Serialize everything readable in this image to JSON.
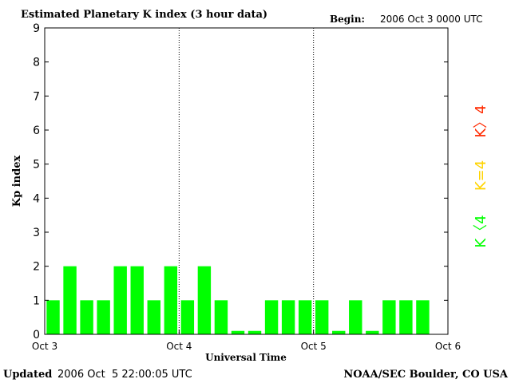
{
  "header": {
    "title": "Estimated Planetary K index (3 hour data)",
    "begin_label": "Begin:",
    "begin_value": "2006 Oct 3 0000 UTC"
  },
  "footer": {
    "updated_label": "Updated",
    "updated_value": "2006 Oct  5 22:00:05 UTC",
    "source": "NOAA/SEC Boulder, CO USA"
  },
  "legend": {
    "high": "K〉4",
    "equal": "K=4",
    "low": "K〈4"
  },
  "colors": {
    "bar_low": "#00ff00",
    "k_equal": "#ffd400",
    "k_high": "#ff2a00",
    "axis": "#000000"
  },
  "chart_data": {
    "type": "bar",
    "title": "Estimated Planetary K index (3 hour data)",
    "xlabel": "Universal Time",
    "ylabel": "Kp index",
    "ylim": [
      0,
      9
    ],
    "yticks": [
      "0",
      "1",
      "2",
      "3",
      "4",
      "5",
      "6",
      "7",
      "8",
      "9"
    ],
    "xticks": [
      "Oct 3",
      "Oct 4",
      "Oct 5",
      "Oct 6"
    ],
    "day_separators": [
      "Oct 4",
      "Oct 5"
    ],
    "grid": false,
    "legend_position": "right",
    "series": [
      {
        "values": [
          1,
          2,
          1,
          1,
          2,
          2,
          1,
          2,
          1,
          2,
          1,
          0.1,
          0.1,
          1,
          1,
          1,
          1,
          0.1,
          1,
          0.1,
          1,
          1,
          1
        ]
      }
    ]
  }
}
